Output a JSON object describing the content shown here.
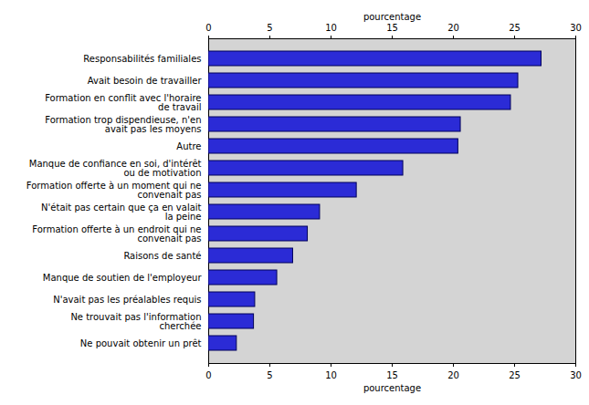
{
  "chart_data": {
    "type": "bar",
    "orientation": "horizontal",
    "xlabel": "pourcentage",
    "categories": [
      "Responsabilités familiales",
      "Avait besoin de travailler",
      "Formation en conflit avec l'horaire de travail",
      "Formation trop dispendieuse, n'en avait pas les moyens",
      "Autre",
      "Manque de confiance en soi, d'intérêt ou de motivation",
      "Formation offerte à un moment qui ne convenait pas",
      "N'était pas certain que ça en valait la peine",
      "Formation offerte à un endroit qui ne convenait pas",
      "Raisons de santé",
      "Manque de soutien de l'employeur",
      "N'avait pas les préalables requis",
      "Ne trouvait pas l'information cherchée",
      "Ne pouvait obtenir un prêt"
    ],
    "values": [
      27.2,
      25.3,
      24.7,
      20.6,
      20.4,
      15.9,
      12.1,
      9.1,
      8.1,
      6.9,
      5.6,
      3.8,
      3.7,
      2.3
    ],
    "color": "#2b2bd6",
    "xlim": [
      0,
      30
    ],
    "xticks": [
      0,
      5,
      10,
      15,
      20,
      25,
      30
    ],
    "grid": false
  }
}
